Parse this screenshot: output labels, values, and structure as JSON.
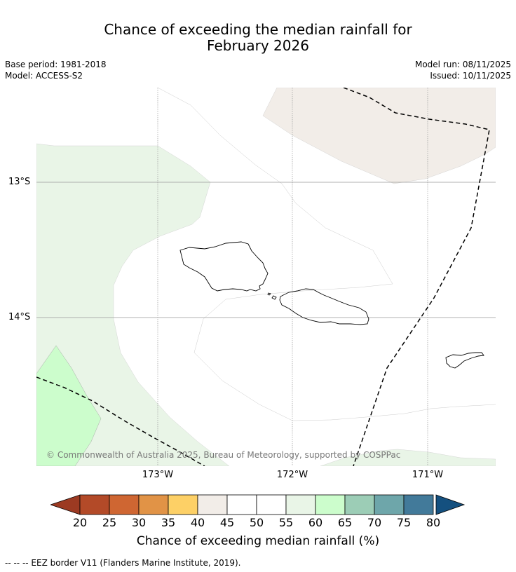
{
  "title": {
    "line1": "Chance of exceeding the median rainfall for",
    "line2": "February 2026"
  },
  "meta": {
    "base_period": "Base period: 1981-2018",
    "model": "Model: ACCESS-S2",
    "model_run": "Model run: 08/11/2025",
    "issued": "Issued: 10/11/2025"
  },
  "map": {
    "lat_labels": [
      "13°S",
      "14°S"
    ],
    "lon_labels": [
      "173°W",
      "172°W",
      "171°W"
    ],
    "copyright": "© Commonwealth of Australia 2025, Bureau of Meteorology, supported by COSPPac",
    "region_colors": {
      "40-45": "#f2ede8",
      "55-60": "#e9f5e7",
      "60-65": "#ccfdcc"
    }
  },
  "colorbar": {
    "title": "Chance of exceeding median rainfall (%)",
    "ticks": [
      "20",
      "25",
      "30",
      "35",
      "40",
      "45",
      "50",
      "55",
      "60",
      "65",
      "70",
      "75",
      "80"
    ],
    "under_color": "#9c3a22",
    "over_color": "#14507f",
    "colors": [
      "#b34a28",
      "#cf6632",
      "#e19346",
      "#fdd066",
      "#f2ede8",
      "#ffffff",
      "#ffffff",
      "#e9f5e7",
      "#ccfdcc",
      "#9ccdb6",
      "#6ea6aa",
      "#427a9a"
    ]
  },
  "footer": "--  --  -- EEZ border V11 (Flanders Marine Institute, 2019)."
}
